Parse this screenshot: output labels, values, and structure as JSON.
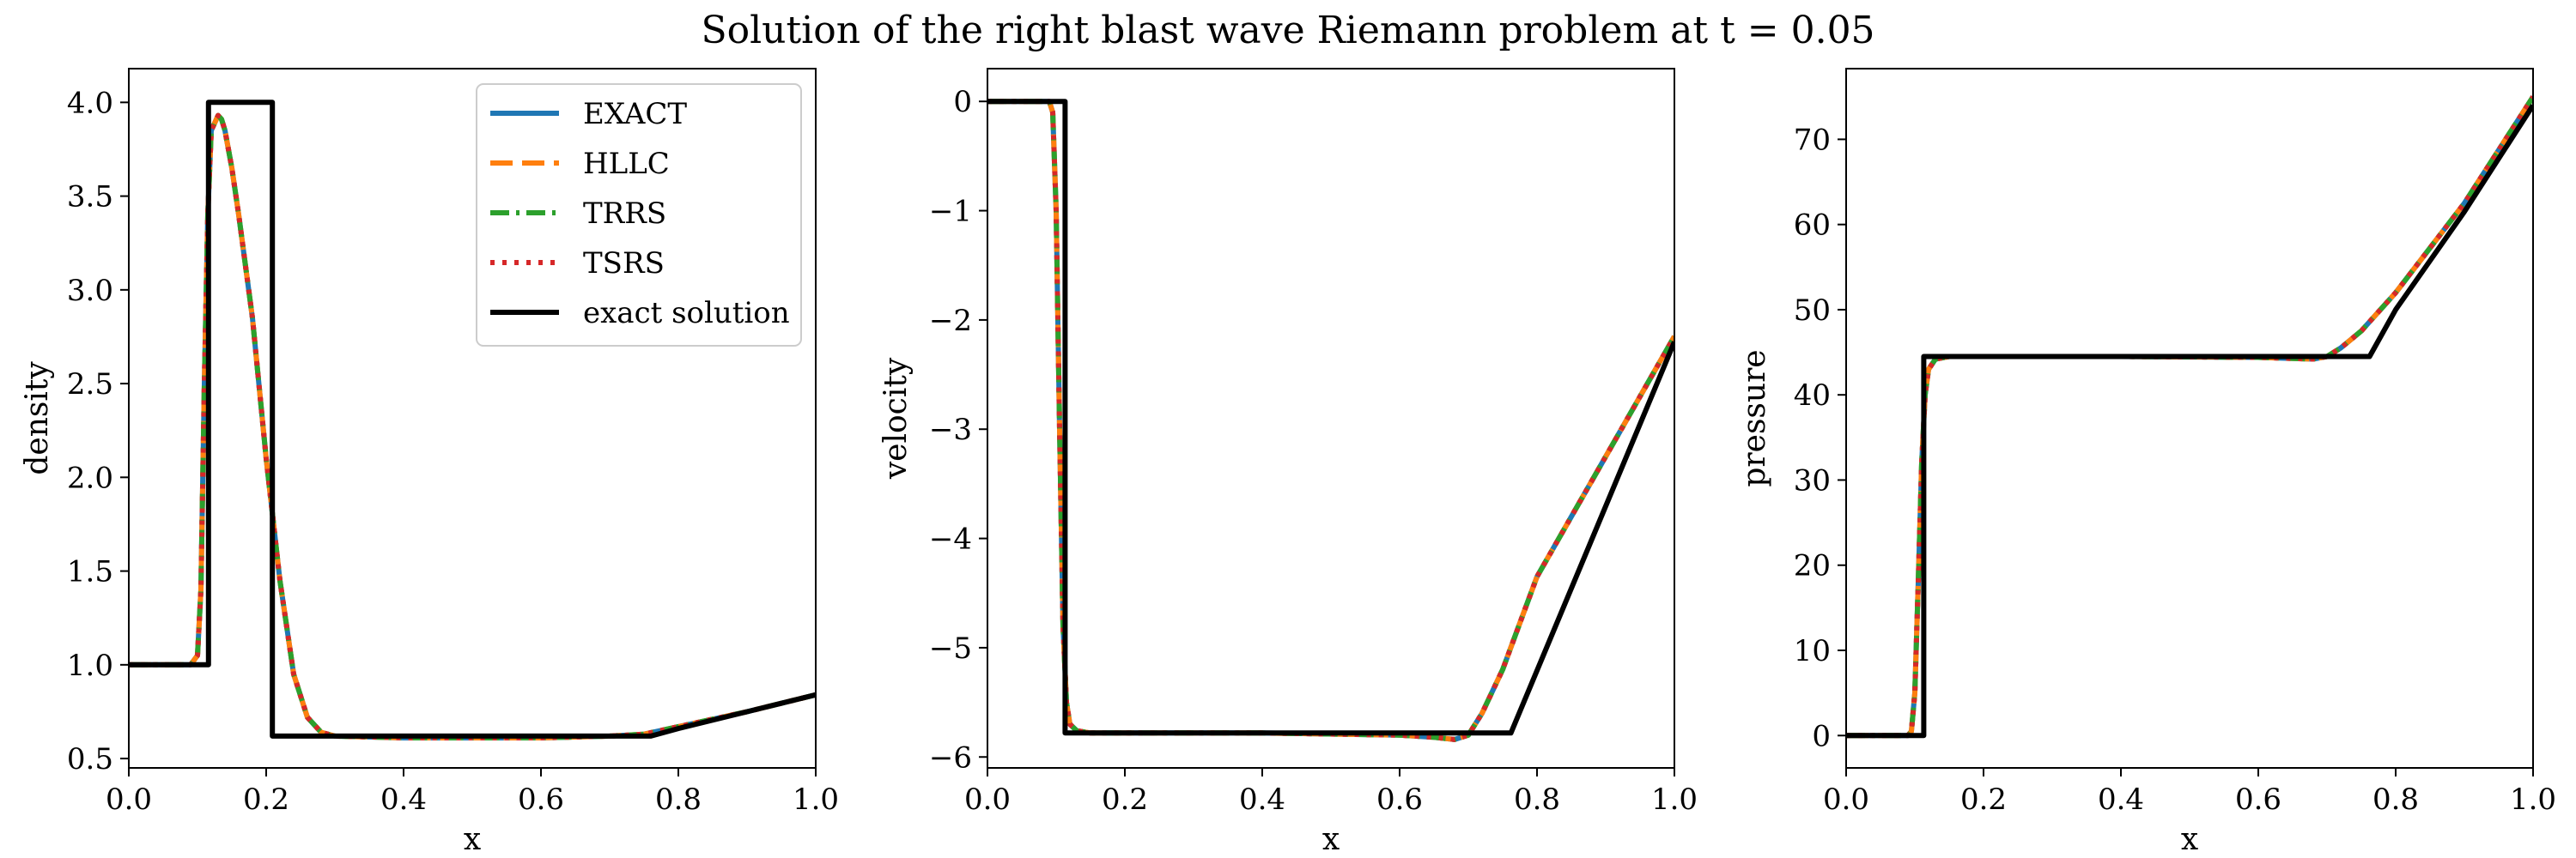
{
  "figure": {
    "title": "Solution of the right blast wave Riemann problem at t = 0.05"
  },
  "legend": {
    "placement": "upper right of first panel",
    "entries": [
      {
        "label": "EXACT",
        "color": "#1f77b4",
        "style": "solid"
      },
      {
        "label": "HLLC",
        "color": "#ff7f0e",
        "style": "dashed"
      },
      {
        "label": "TRRS",
        "color": "#2ca02c",
        "style": "dashdot"
      },
      {
        "label": "TSRS",
        "color": "#d62728",
        "style": "dotted"
      },
      {
        "label": "exact solution",
        "color": "#000000",
        "style": "solid"
      }
    ]
  },
  "chart_data": [
    {
      "type": "line",
      "xlabel": "x",
      "ylabel": "density",
      "xlim": [
        0,
        1
      ],
      "ylim": [
        0.45,
        4.18
      ],
      "xticks": [
        0.0,
        0.2,
        0.4,
        0.6,
        0.8,
        1.0
      ],
      "xtick_labels": [
        "0.0",
        "0.2",
        "0.4",
        "0.6",
        "0.8",
        "1.0"
      ],
      "yticks": [
        0.5,
        1.0,
        1.5,
        2.0,
        2.5,
        3.0,
        3.5,
        4.0
      ],
      "ytick_labels": [
        "0.5",
        "1.0",
        "1.5",
        "2.0",
        "2.5",
        "3.0",
        "3.5",
        "4.0"
      ],
      "grid": false,
      "series": [
        {
          "name": "EXACT",
          "x": [
            0,
            0.09,
            0.1,
            0.105,
            0.11,
            0.115,
            0.12,
            0.13,
            0.135,
            0.14,
            0.15,
            0.16,
            0.18,
            0.2,
            0.22,
            0.24,
            0.26,
            0.28,
            0.3,
            0.4,
            0.6,
            0.7,
            0.75,
            0.8,
            0.9,
            1.0
          ],
          "y": [
            1.0,
            1.0,
            1.05,
            1.4,
            2.5,
            3.4,
            3.85,
            3.93,
            3.91,
            3.85,
            3.65,
            3.4,
            2.85,
            2.1,
            1.45,
            0.95,
            0.72,
            0.64,
            0.62,
            0.61,
            0.61,
            0.62,
            0.63,
            0.67,
            0.75,
            0.84
          ]
        },
        {
          "name": "HLLC",
          "x": [
            0,
            0.09,
            0.1,
            0.105,
            0.11,
            0.115,
            0.12,
            0.13,
            0.135,
            0.14,
            0.15,
            0.16,
            0.18,
            0.2,
            0.22,
            0.24,
            0.26,
            0.28,
            0.3,
            0.4,
            0.6,
            0.7,
            0.75,
            0.8,
            0.9,
            1.0
          ],
          "y": [
            1.0,
            1.0,
            1.05,
            1.4,
            2.5,
            3.4,
            3.85,
            3.93,
            3.91,
            3.85,
            3.65,
            3.4,
            2.85,
            2.1,
            1.45,
            0.95,
            0.72,
            0.64,
            0.62,
            0.61,
            0.61,
            0.62,
            0.63,
            0.67,
            0.75,
            0.84
          ]
        },
        {
          "name": "TRRS",
          "x": [
            0,
            0.09,
            0.1,
            0.105,
            0.11,
            0.115,
            0.12,
            0.13,
            0.135,
            0.14,
            0.15,
            0.16,
            0.18,
            0.2,
            0.22,
            0.24,
            0.26,
            0.28,
            0.3,
            0.4,
            0.6,
            0.7,
            0.75,
            0.8,
            0.9,
            1.0
          ],
          "y": [
            1.0,
            1.0,
            1.05,
            1.4,
            2.5,
            3.4,
            3.85,
            3.93,
            3.91,
            3.85,
            3.65,
            3.4,
            2.85,
            2.1,
            1.45,
            0.95,
            0.72,
            0.64,
            0.62,
            0.61,
            0.61,
            0.62,
            0.63,
            0.67,
            0.75,
            0.84
          ]
        },
        {
          "name": "TSRS",
          "x": [
            0,
            0.09,
            0.1,
            0.105,
            0.11,
            0.115,
            0.12,
            0.13,
            0.135,
            0.14,
            0.15,
            0.16,
            0.18,
            0.2,
            0.22,
            0.24,
            0.26,
            0.28,
            0.3,
            0.4,
            0.6,
            0.7,
            0.75,
            0.8,
            0.9,
            1.0
          ],
          "y": [
            1.0,
            1.0,
            1.05,
            1.4,
            2.5,
            3.4,
            3.85,
            3.93,
            3.91,
            3.85,
            3.65,
            3.4,
            2.85,
            2.1,
            1.45,
            0.95,
            0.72,
            0.64,
            0.62,
            0.61,
            0.61,
            0.62,
            0.63,
            0.67,
            0.75,
            0.84
          ]
        },
        {
          "name": "exact solution",
          "x": [
            0,
            0.11,
            0.116,
            0.116,
            0.209,
            0.209,
            0.76,
            0.8,
            0.9,
            1.0
          ],
          "y": [
            1.0,
            1.0,
            1.0,
            4.0,
            4.0,
            0.62,
            0.62,
            0.66,
            0.75,
            0.84
          ]
        }
      ]
    },
    {
      "type": "line",
      "xlabel": "x",
      "ylabel": "velocity",
      "xlim": [
        0,
        1
      ],
      "ylim": [
        -6.1,
        0.3
      ],
      "xticks": [
        0.0,
        0.2,
        0.4,
        0.6,
        0.8,
        1.0
      ],
      "xtick_labels": [
        "0.0",
        "0.2",
        "0.4",
        "0.6",
        "0.8",
        "1.0"
      ],
      "yticks": [
        0,
        -1,
        -2,
        -3,
        -4,
        -5,
        -6
      ],
      "ytick_labels": [
        "0",
        "−1",
        "−2",
        "−3",
        "−4",
        "−5",
        "−6"
      ],
      "grid": false,
      "series": [
        {
          "name": "EXACT",
          "x": [
            0,
            0.09,
            0.095,
            0.1,
            0.105,
            0.11,
            0.115,
            0.12,
            0.13,
            0.15,
            0.2,
            0.4,
            0.6,
            0.65,
            0.68,
            0.7,
            0.72,
            0.75,
            0.8,
            0.9,
            1.0
          ],
          "y": [
            0,
            0,
            -0.1,
            -1.0,
            -3.0,
            -4.8,
            -5.5,
            -5.7,
            -5.76,
            -5.78,
            -5.78,
            -5.78,
            -5.8,
            -5.82,
            -5.84,
            -5.8,
            -5.6,
            -5.2,
            -4.35,
            -3.25,
            -2.15
          ]
        },
        {
          "name": "HLLC",
          "x": [
            0,
            0.09,
            0.095,
            0.1,
            0.105,
            0.11,
            0.115,
            0.12,
            0.13,
            0.15,
            0.2,
            0.4,
            0.6,
            0.65,
            0.68,
            0.7,
            0.72,
            0.75,
            0.8,
            0.9,
            1.0
          ],
          "y": [
            0,
            0,
            -0.1,
            -1.0,
            -3.0,
            -4.8,
            -5.5,
            -5.7,
            -5.76,
            -5.78,
            -5.78,
            -5.78,
            -5.8,
            -5.82,
            -5.84,
            -5.8,
            -5.6,
            -5.2,
            -4.35,
            -3.25,
            -2.15
          ]
        },
        {
          "name": "TRRS",
          "x": [
            0,
            0.09,
            0.095,
            0.1,
            0.105,
            0.11,
            0.115,
            0.12,
            0.13,
            0.15,
            0.2,
            0.4,
            0.6,
            0.65,
            0.68,
            0.7,
            0.72,
            0.75,
            0.8,
            0.9,
            1.0
          ],
          "y": [
            0,
            0,
            -0.1,
            -1.0,
            -3.0,
            -4.8,
            -5.5,
            -5.7,
            -5.76,
            -5.78,
            -5.78,
            -5.78,
            -5.8,
            -5.82,
            -5.84,
            -5.8,
            -5.6,
            -5.2,
            -4.35,
            -3.25,
            -2.15
          ]
        },
        {
          "name": "TSRS",
          "x": [
            0,
            0.09,
            0.095,
            0.1,
            0.105,
            0.11,
            0.115,
            0.12,
            0.13,
            0.15,
            0.2,
            0.4,
            0.6,
            0.65,
            0.68,
            0.7,
            0.72,
            0.75,
            0.8,
            0.9,
            1.0
          ],
          "y": [
            0,
            0,
            -0.1,
            -1.0,
            -3.0,
            -4.8,
            -5.5,
            -5.7,
            -5.76,
            -5.78,
            -5.78,
            -5.78,
            -5.8,
            -5.82,
            -5.84,
            -5.8,
            -5.6,
            -5.2,
            -4.35,
            -3.25,
            -2.15
          ]
        },
        {
          "name": "exact solution",
          "x": [
            0,
            0.113,
            0.113,
            0.762,
            1.0
          ],
          "y": [
            0,
            0,
            -5.78,
            -5.78,
            -2.2
          ]
        }
      ]
    },
    {
      "type": "line",
      "xlabel": "x",
      "ylabel": "pressure",
      "xlim": [
        0,
        1
      ],
      "ylim": [
        -3.8,
        78.3
      ],
      "xticks": [
        0.0,
        0.2,
        0.4,
        0.6,
        0.8,
        1.0
      ],
      "xtick_labels": [
        "0.0",
        "0.2",
        "0.4",
        "0.6",
        "0.8",
        "1.0"
      ],
      "yticks": [
        0,
        10,
        20,
        30,
        40,
        50,
        60,
        70
      ],
      "ytick_labels": [
        "0",
        "10",
        "20",
        "30",
        "40",
        "50",
        "60",
        "70"
      ],
      "grid": false,
      "series": [
        {
          "name": "EXACT",
          "x": [
            0,
            0.09,
            0.095,
            0.1,
            0.105,
            0.11,
            0.115,
            0.12,
            0.13,
            0.15,
            0.2,
            0.4,
            0.6,
            0.68,
            0.7,
            0.72,
            0.75,
            0.8,
            0.9,
            1.0
          ],
          "y": [
            0.01,
            0.01,
            0.5,
            5,
            18,
            32,
            40,
            43,
            44.2,
            44.5,
            44.5,
            44.5,
            44.4,
            44.2,
            44.5,
            45.5,
            47.5,
            52,
            62.5,
            75
          ]
        },
        {
          "name": "HLLC",
          "x": [
            0,
            0.09,
            0.095,
            0.1,
            0.105,
            0.11,
            0.115,
            0.12,
            0.13,
            0.15,
            0.2,
            0.4,
            0.6,
            0.68,
            0.7,
            0.72,
            0.75,
            0.8,
            0.9,
            1.0
          ],
          "y": [
            0.01,
            0.01,
            0.5,
            5,
            18,
            32,
            40,
            43,
            44.2,
            44.5,
            44.5,
            44.5,
            44.4,
            44.2,
            44.5,
            45.5,
            47.5,
            52,
            62.5,
            75
          ]
        },
        {
          "name": "TRRS",
          "x": [
            0,
            0.09,
            0.095,
            0.1,
            0.105,
            0.11,
            0.115,
            0.12,
            0.13,
            0.15,
            0.2,
            0.4,
            0.6,
            0.68,
            0.7,
            0.72,
            0.75,
            0.8,
            0.9,
            1.0
          ],
          "y": [
            0.01,
            0.01,
            0.5,
            5,
            18,
            32,
            40,
            43,
            44.2,
            44.5,
            44.5,
            44.5,
            44.4,
            44.2,
            44.5,
            45.5,
            47.5,
            52,
            62.5,
            75
          ]
        },
        {
          "name": "TSRS",
          "x": [
            0,
            0.09,
            0.095,
            0.1,
            0.105,
            0.11,
            0.115,
            0.12,
            0.13,
            0.15,
            0.2,
            0.4,
            0.6,
            0.68,
            0.7,
            0.72,
            0.75,
            0.8,
            0.9,
            1.0
          ],
          "y": [
            0.01,
            0.01,
            0.5,
            5,
            18,
            32,
            40,
            43,
            44.2,
            44.5,
            44.5,
            44.5,
            44.4,
            44.2,
            44.5,
            45.5,
            47.5,
            52,
            62.5,
            75
          ]
        },
        {
          "name": "exact solution",
          "x": [
            0,
            0.113,
            0.113,
            0.762,
            0.8,
            0.9,
            1.0
          ],
          "y": [
            0.01,
            0.01,
            44.5,
            44.5,
            50,
            61.5,
            74
          ]
        }
      ]
    }
  ]
}
